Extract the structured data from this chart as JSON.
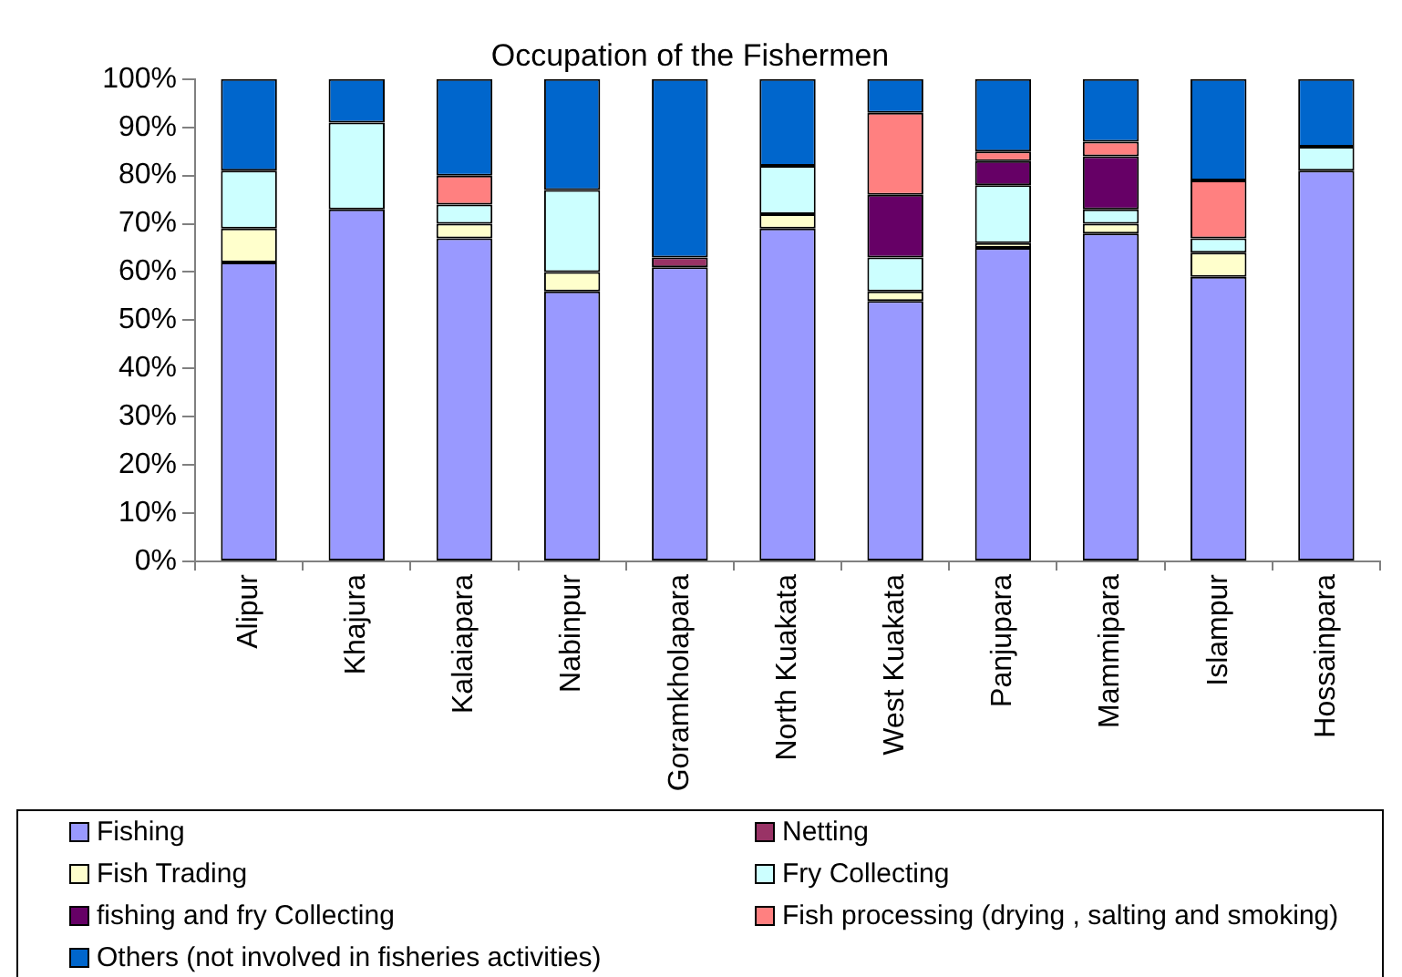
{
  "chart_data": {
    "type": "bar",
    "title": "Occupation of the Fishermen",
    "categories": [
      "Alipur",
      "Khajura",
      "Kalaiapara",
      "Nabinpur",
      "Goramkholapara",
      "North Kuakata",
      "West Kuakata",
      "Panjupara",
      "Mammipara",
      "Islampur",
      "Hossainpara"
    ],
    "series": [
      {
        "name": "Fishing",
        "color": "#9999ff",
        "values": [
          62,
          73,
          67,
          56,
          61,
          69,
          54,
          65,
          68,
          59,
          81
        ]
      },
      {
        "name": "Netting",
        "color": "#993366",
        "values": [
          0,
          0,
          0,
          0,
          2,
          0,
          0,
          0,
          0,
          0,
          0
        ]
      },
      {
        "name": "Fish Trading",
        "color": "#ffffcc",
        "values": [
          7,
          0,
          3,
          4,
          0,
          3,
          2,
          1,
          2,
          5,
          0
        ]
      },
      {
        "name": "Fry Collecting",
        "color": "#ccffff",
        "values": [
          12,
          18,
          4,
          17,
          0,
          10,
          7,
          12,
          3,
          3,
          5
        ]
      },
      {
        "name": "fishing and fry Collecting",
        "color": "#660066",
        "values": [
          0,
          0,
          0,
          0,
          0,
          0,
          13,
          5,
          11,
          0,
          0
        ]
      },
      {
        "name": "Fish processing (drying , salting and smoking)",
        "color": "#ff8080",
        "values": [
          0,
          0,
          6,
          0,
          0,
          0,
          17,
          2,
          3,
          12,
          0
        ]
      },
      {
        "name": "Others (not involved in fisheries activities)",
        "color": "#0066cc",
        "values": [
          19,
          9,
          20,
          23,
          37,
          18,
          7,
          15,
          13,
          21,
          14
        ]
      }
    ],
    "stacked": true,
    "ylim": [
      0,
      100
    ],
    "yticks": [
      {
        "value": 0,
        "label": "0%"
      },
      {
        "value": 10,
        "label": "10%"
      },
      {
        "value": 20,
        "label": "20%"
      },
      {
        "value": 30,
        "label": "30%"
      },
      {
        "value": 40,
        "label": "40%"
      },
      {
        "value": 50,
        "label": "50%"
      },
      {
        "value": 60,
        "label": "60%"
      },
      {
        "value": 70,
        "label": "70%"
      },
      {
        "value": 80,
        "label": "80%"
      },
      {
        "value": 90,
        "label": "90%"
      },
      {
        "value": 100,
        "label": "100%"
      }
    ],
    "grid": false,
    "legend": "bottom"
  }
}
